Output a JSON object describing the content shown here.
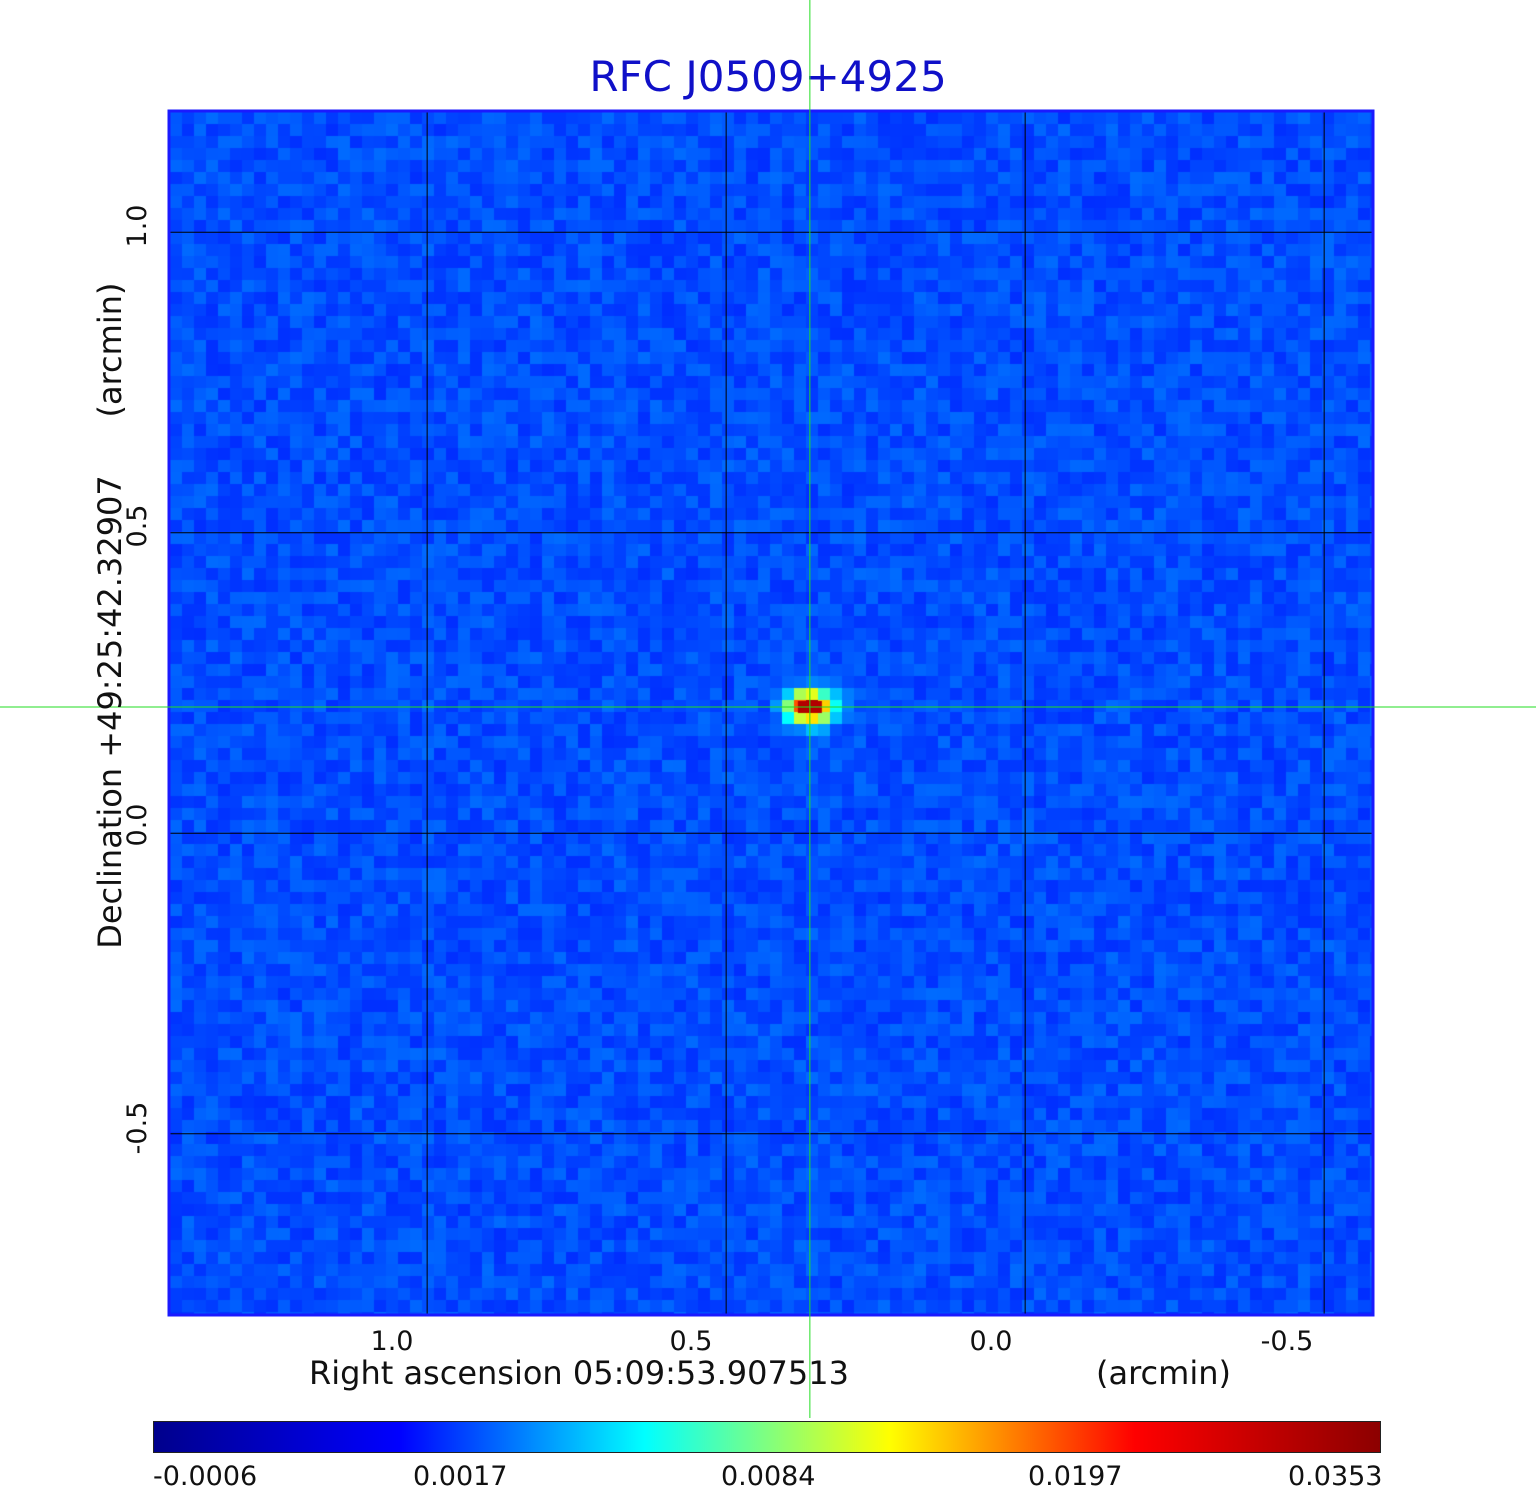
{
  "chart_data": {
    "type": "heatmap",
    "title": "RFC J0509+4925",
    "xlabel": "Right ascension  05:09:53.907513",
    "xunit": "(arcmin)",
    "ylabel": "Declination  +49:25:42.32907",
    "yunit": "(arcmin)",
    "xlim": [
      1.43,
      -0.58
    ],
    "ylim": [
      -0.8,
      1.2
    ],
    "x_ticks": [
      "1.0",
      "0.5",
      "0.0",
      "-0.5"
    ],
    "y_ticks": [
      "1.0",
      "0.5",
      "0.0",
      "-0.5"
    ],
    "grid": true,
    "source_peak": {
      "x": 0.36,
      "y": 0.21,
      "value": 0.0353
    },
    "crosshair": {
      "x": 0.36,
      "y": 0.21
    },
    "colorbar": {
      "ticks": [
        "-0.0006",
        "0.0017",
        "0.0084",
        "0.0197",
        "0.0353"
      ],
      "colors": [
        "#00008c",
        "#0000ff",
        "#00ffff",
        "#ffff00",
        "#ff0000",
        "#8c0000"
      ]
    }
  }
}
